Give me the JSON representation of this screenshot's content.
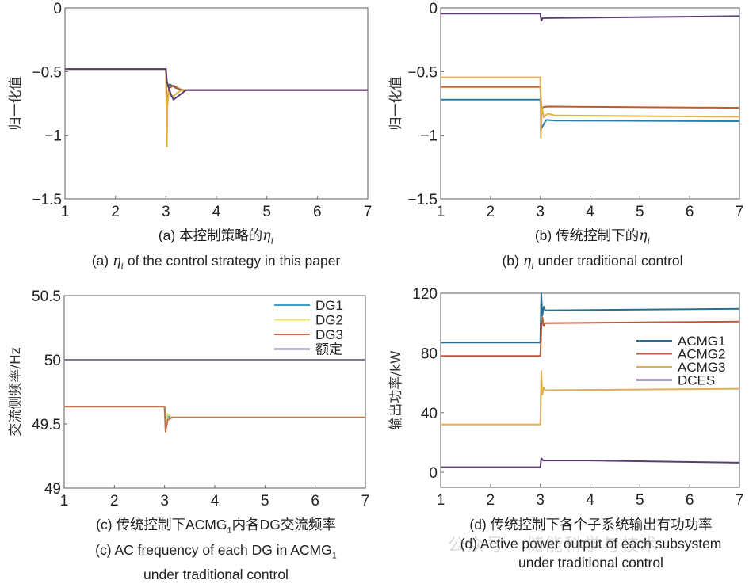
{
  "figure": {
    "watermark": "公众号 · 储能科学与技术"
  },
  "chart_data": [
    {
      "id": "a",
      "type": "line",
      "title": "",
      "caption_cn_prefix": "(a) 本控制策略的",
      "caption_cn_symbol": "ηi",
      "caption_en_prefix": "(a) ",
      "caption_en_symbol": "ηi",
      "caption_en_suffix": " of the control strategy in this paper",
      "xlabel": "",
      "ylabel": "归一化值",
      "xlim": [
        1,
        7
      ],
      "ylim": [
        -1.5,
        0
      ],
      "xticks": [
        "1",
        "2",
        "3",
        "4",
        "5",
        "6",
        "7"
      ],
      "yticks": [
        "0",
        "-0.5",
        "-1",
        "-1.5"
      ],
      "ytick_values": [
        0,
        -0.5,
        -1,
        -1.5
      ],
      "grid": false,
      "legend": null,
      "series": [
        {
          "name": "s1",
          "color": "#2a7fa8",
          "points": [
            [
              1,
              -0.48
            ],
            [
              3.0,
              -0.48
            ],
            [
              3.02,
              -0.62
            ],
            [
              3.08,
              -0.6
            ],
            [
              3.2,
              -0.63
            ],
            [
              3.35,
              -0.645
            ],
            [
              7,
              -0.645
            ]
          ]
        },
        {
          "name": "s2",
          "color": "#c25a2a",
          "points": [
            [
              1,
              -0.48
            ],
            [
              3.0,
              -0.48
            ],
            [
              3.02,
              -0.8
            ],
            [
              3.06,
              -0.63
            ],
            [
              3.15,
              -0.61
            ],
            [
              3.3,
              -0.645
            ],
            [
              7,
              -0.645
            ]
          ]
        },
        {
          "name": "s3",
          "color": "#e0b040",
          "points": [
            [
              1,
              -0.48
            ],
            [
              3.0,
              -0.48
            ],
            [
              3.02,
              -1.09
            ],
            [
              3.03,
              -0.75
            ],
            [
              3.06,
              -0.66
            ],
            [
              3.12,
              -0.7
            ],
            [
              3.3,
              -0.645
            ],
            [
              7,
              -0.645
            ]
          ]
        },
        {
          "name": "s4",
          "color": "#5a3e70",
          "points": [
            [
              1,
              -0.48
            ],
            [
              3.0,
              -0.48
            ],
            [
              3.02,
              -0.58
            ],
            [
              3.1,
              -0.68
            ],
            [
              3.15,
              -0.72
            ],
            [
              3.25,
              -0.69
            ],
            [
              3.4,
              -0.645
            ],
            [
              7,
              -0.645
            ]
          ]
        }
      ]
    },
    {
      "id": "b",
      "type": "line",
      "title": "",
      "caption_cn_prefix": "(b) 传统控制下的",
      "caption_cn_symbol": "ηi",
      "caption_en_prefix": "(b) ",
      "caption_en_symbol": "ηi",
      "caption_en_suffix": " under traditional control",
      "xlabel": "",
      "ylabel": "归一化值",
      "xlim": [
        1,
        7
      ],
      "ylim": [
        -1.5,
        0
      ],
      "xticks": [
        "1",
        "2",
        "3",
        "4",
        "5",
        "6",
        "7"
      ],
      "yticks": [
        "0",
        "-0.5",
        "-1",
        "-1.5"
      ],
      "ytick_values": [
        0,
        -0.5,
        -1,
        -1.5
      ],
      "grid": false,
      "legend": null,
      "series": [
        {
          "name": "s1",
          "color": "#2a7fa8",
          "points": [
            [
              1,
              -0.72
            ],
            [
              3.0,
              -0.72
            ],
            [
              3.02,
              -0.95
            ],
            [
              3.06,
              -0.92
            ],
            [
              3.12,
              -0.88
            ],
            [
              3.3,
              -0.885
            ],
            [
              7,
              -0.89
            ]
          ]
        },
        {
          "name": "s2",
          "color": "#c25a2a",
          "points": [
            [
              1,
              -0.62
            ],
            [
              3.0,
              -0.62
            ],
            [
              3.02,
              -0.8
            ],
            [
              3.06,
              -0.78
            ],
            [
              3.15,
              -0.775
            ],
            [
              7,
              -0.785
            ]
          ]
        },
        {
          "name": "s3",
          "color": "#e0b040",
          "points": [
            [
              1,
              -0.545
            ],
            [
              3.0,
              -0.545
            ],
            [
              3.01,
              -1.02
            ],
            [
              3.03,
              -0.78
            ],
            [
              3.07,
              -0.86
            ],
            [
              3.15,
              -0.83
            ],
            [
              3.3,
              -0.845
            ],
            [
              7,
              -0.855
            ]
          ]
        },
        {
          "name": "s4",
          "color": "#5a3e70",
          "points": [
            [
              1,
              -0.045
            ],
            [
              3.0,
              -0.045
            ],
            [
              3.02,
              -0.1
            ],
            [
              3.05,
              -0.08
            ],
            [
              7,
              -0.065
            ]
          ]
        }
      ]
    },
    {
      "id": "c",
      "type": "line",
      "title": "",
      "caption_cn_prefix": "(c) 传统控制下ACMG",
      "caption_cn_sub": "1",
      "caption_cn_suffix": "内各DG交流频率",
      "caption_en_line1_prefix": "(c) AC frequency of each DG in ACMG",
      "caption_en_line1_sub": "1",
      "caption_en_line2": "under traditional control",
      "xlabel": "",
      "ylabel": "交流侧频率/Hz",
      "xlim": [
        1,
        7
      ],
      "ylim": [
        49,
        50.5
      ],
      "xticks": [
        "1",
        "2",
        "3",
        "4",
        "5",
        "6",
        "7"
      ],
      "yticks": [
        "50.5",
        "50",
        "49.5",
        "49"
      ],
      "ytick_values": [
        50.5,
        50,
        49.5,
        49
      ],
      "grid": false,
      "legend": {
        "position": "top-right",
        "entries": [
          "DG1",
          "DG2",
          "DG3",
          "额定"
        ]
      },
      "series": [
        {
          "name": "DG1",
          "color": "#3aa0c8",
          "points": [
            [
              1,
              49.635
            ],
            [
              3.0,
              49.635
            ],
            [
              3.02,
              49.47
            ],
            [
              3.06,
              49.56
            ],
            [
              3.15,
              49.55
            ],
            [
              7,
              49.55
            ]
          ]
        },
        {
          "name": "DG2",
          "color": "#e8e070",
          "points": [
            [
              1,
              49.635
            ],
            [
              3.0,
              49.635
            ],
            [
              3.02,
              49.5
            ],
            [
              3.06,
              49.58
            ],
            [
              3.15,
              49.55
            ],
            [
              7,
              49.55
            ]
          ]
        },
        {
          "name": "DG3",
          "color": "#c07050",
          "points": [
            [
              1,
              49.635
            ],
            [
              3.0,
              49.635
            ],
            [
              3.02,
              49.44
            ],
            [
              3.06,
              49.53
            ],
            [
              3.15,
              49.55
            ],
            [
              7,
              49.55
            ]
          ]
        },
        {
          "name": "额定",
          "color": "#7a7a9a",
          "points": [
            [
              1,
              50
            ],
            [
              7,
              50
            ]
          ]
        }
      ]
    },
    {
      "id": "d",
      "type": "line",
      "title": "",
      "caption_cn": "(d) 传统控制下各个子系统输出有功功率",
      "caption_en_line1": "(d) Active power output of each subsystem",
      "caption_en_line2": "under traditional control",
      "xlabel": "",
      "ylabel": "输出功率/kW",
      "xlim": [
        1,
        7
      ],
      "ylim": [
        -10,
        120
      ],
      "xticks": [
        "1",
        "2",
        "3",
        "4",
        "5",
        "6",
        "7"
      ],
      "yticks": [
        "120",
        "80",
        "40",
        "0"
      ],
      "ytick_values": [
        120,
        80,
        40,
        0
      ],
      "grid": false,
      "legend": {
        "position": "right",
        "entries": [
          "ACMG1",
          "ACMG2",
          "ACMG3",
          "DCES"
        ]
      },
      "series": [
        {
          "name": "ACMG1",
          "color": "#2a6f90",
          "points": [
            [
              1,
              87
            ],
            [
              3.0,
              87
            ],
            [
              3.02,
              120
            ],
            [
              3.04,
              105
            ],
            [
              3.07,
              111
            ],
            [
              3.1,
              108.5
            ],
            [
              5,
              109
            ],
            [
              7,
              109.5
            ]
          ]
        },
        {
          "name": "ACMG2",
          "color": "#c05a3a",
          "points": [
            [
              1,
              78
            ],
            [
              3.0,
              78
            ],
            [
              3.02,
              95
            ],
            [
              3.04,
              104
            ],
            [
              3.07,
              98
            ],
            [
              3.1,
              100
            ],
            [
              5,
              100.5
            ],
            [
              7,
              101
            ]
          ]
        },
        {
          "name": "ACMG3",
          "color": "#e0b050",
          "points": [
            [
              1,
              32
            ],
            [
              3.0,
              32
            ],
            [
              3.02,
              68
            ],
            [
              3.04,
              52
            ],
            [
              3.07,
              57
            ],
            [
              3.1,
              55
            ],
            [
              5,
              55.5
            ],
            [
              7,
              56
            ]
          ]
        },
        {
          "name": "DCES",
          "color": "#5a3e70",
          "points": [
            [
              1,
              3.5
            ],
            [
              3.0,
              3.5
            ],
            [
              3.02,
              9.5
            ],
            [
              3.06,
              8
            ],
            [
              4,
              8
            ],
            [
              7,
              6.5
            ]
          ]
        }
      ]
    }
  ]
}
